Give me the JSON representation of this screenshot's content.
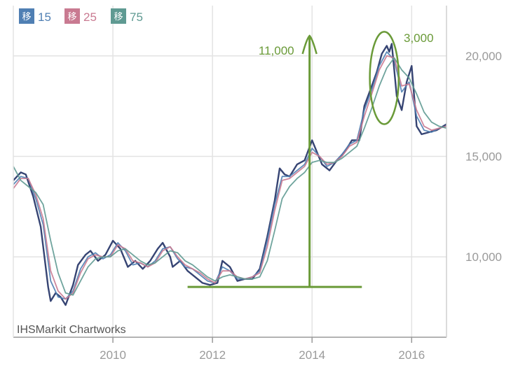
{
  "legend": [
    {
      "box": "移",
      "label": "15",
      "color": "#4f7fb3"
    },
    {
      "box": "移",
      "label": "25",
      "color": "#c97a91"
    },
    {
      "box": "移",
      "label": "75",
      "color": "#5f9a92"
    }
  ],
  "watermark": "IHSMarkit Chartworks",
  "annotations": {
    "rise_label": "11,000",
    "drop_label": "3,000",
    "color": "#6a9a38"
  },
  "chart_data": {
    "type": "line",
    "title": "",
    "xlabel": "",
    "ylabel": "",
    "x_ticks": [
      "2010",
      "2012",
      "2014",
      "2016"
    ],
    "y_ticks": [
      "10,000",
      "15,000",
      "20,000"
    ],
    "y_axis_position": "right",
    "xlim": [
      2008.0,
      2016.7
    ],
    "ylim": [
      6000,
      22500
    ],
    "grid": true,
    "series": [
      {
        "name": "",
        "color": "#2b3a6b",
        "x": [
          2008.0,
          2008.15,
          2008.25,
          2008.4,
          2008.55,
          2008.7,
          2008.75,
          2008.85,
          2008.95,
          2009.05,
          2009.2,
          2009.3,
          2009.45,
          2009.55,
          2009.7,
          2009.85,
          2010.0,
          2010.15,
          2010.3,
          2010.45,
          2010.6,
          2010.75,
          2010.9,
          2011.0,
          2011.15,
          2011.2,
          2011.35,
          2011.5,
          2011.65,
          2011.8,
          2011.95,
          2012.1,
          2012.2,
          2012.35,
          2012.5,
          2012.65,
          2012.8,
          2012.95,
          2013.1,
          2013.25,
          2013.35,
          2013.45,
          2013.55,
          2013.7,
          2013.85,
          2014.0,
          2014.1,
          2014.2,
          2014.35,
          2014.5,
          2014.65,
          2014.8,
          2014.95,
          2015.05,
          2015.2,
          2015.3,
          2015.4,
          2015.5,
          2015.55,
          2015.6,
          2015.7,
          2015.8,
          2015.9,
          2016.0,
          2016.1,
          2016.2,
          2016.35,
          2016.5,
          2016.7
        ],
        "y": [
          13800,
          14200,
          14100,
          13000,
          11500,
          8500,
          7800,
          8200,
          8000,
          7600,
          8600,
          9600,
          10100,
          10300,
          9800,
          10100,
          10800,
          10400,
          9500,
          9800,
          9400,
          9800,
          10400,
          10700,
          10000,
          9500,
          9800,
          9300,
          9000,
          8700,
          8600,
          8700,
          9800,
          9500,
          8800,
          8900,
          8900,
          9400,
          11000,
          12800,
          14400,
          14100,
          14000,
          14600,
          14800,
          15800,
          15200,
          14600,
          14300,
          14800,
          15200,
          15800,
          15800,
          17500,
          18500,
          19200,
          20100,
          20500,
          20200,
          20600,
          18000,
          17300,
          18700,
          19500,
          16500,
          16100,
          16200,
          16300,
          16600
        ]
      },
      {
        "name": "",
        "color": "#4f7fb3",
        "x": [
          2008.0,
          2008.15,
          2008.3,
          2008.45,
          2008.6,
          2008.75,
          2008.9,
          2009.05,
          2009.2,
          2009.35,
          2009.5,
          2009.65,
          2009.8,
          2009.95,
          2010.1,
          2010.25,
          2010.4,
          2010.55,
          2010.7,
          2010.85,
          2011.0,
          2011.15,
          2011.3,
          2011.45,
          2011.6,
          2011.75,
          2011.9,
          2012.05,
          2012.2,
          2012.35,
          2012.5,
          2012.65,
          2012.8,
          2012.95,
          2013.1,
          2013.25,
          2013.4,
          2013.55,
          2013.7,
          2013.85,
          2014.0,
          2014.15,
          2014.3,
          2014.45,
          2014.6,
          2014.75,
          2014.9,
          2015.05,
          2015.2,
          2015.35,
          2015.5,
          2015.65,
          2015.8,
          2015.95,
          2016.1,
          2016.25,
          2016.4,
          2016.55,
          2016.7
        ],
        "y": [
          13600,
          14000,
          13900,
          12900,
          11600,
          8800,
          8000,
          7900,
          8300,
          9400,
          10000,
          10200,
          9900,
          10100,
          10700,
          10300,
          9600,
          9700,
          9500,
          9800,
          10400,
          10500,
          9900,
          9500,
          9400,
          9100,
          8800,
          8700,
          9500,
          9300,
          8900,
          8900,
          9000,
          9300,
          10800,
          12600,
          14000,
          14000,
          14300,
          14600,
          15400,
          15000,
          14500,
          14700,
          15100,
          15600,
          15800,
          17300,
          18300,
          19500,
          20200,
          19800,
          18200,
          18700,
          17000,
          16300,
          16200,
          16400,
          16500
        ]
      },
      {
        "name": "",
        "color": "#c97a91",
        "x": [
          2008.0,
          2008.15,
          2008.3,
          2008.45,
          2008.6,
          2008.75,
          2008.9,
          2009.05,
          2009.2,
          2009.35,
          2009.5,
          2009.65,
          2009.8,
          2009.95,
          2010.1,
          2010.25,
          2010.4,
          2010.55,
          2010.7,
          2010.85,
          2011.0,
          2011.15,
          2011.3,
          2011.45,
          2011.6,
          2011.75,
          2011.9,
          2012.05,
          2012.2,
          2012.35,
          2012.5,
          2012.65,
          2012.8,
          2012.95,
          2013.1,
          2013.25,
          2013.4,
          2013.55,
          2013.7,
          2013.85,
          2014.0,
          2014.15,
          2014.3,
          2014.45,
          2014.6,
          2014.75,
          2014.9,
          2015.05,
          2015.2,
          2015.35,
          2015.5,
          2015.65,
          2015.8,
          2015.95,
          2016.1,
          2016.25,
          2016.4,
          2016.55,
          2016.7
        ],
        "y": [
          13400,
          13900,
          13900,
          13100,
          11900,
          9300,
          8300,
          7900,
          8200,
          9200,
          9900,
          10100,
          10000,
          10000,
          10600,
          10400,
          9800,
          9700,
          9500,
          9700,
          10300,
          10500,
          10000,
          9600,
          9400,
          9200,
          8900,
          8700,
          9300,
          9300,
          9000,
          8900,
          9000,
          9200,
          10500,
          12300,
          13800,
          13900,
          14200,
          14500,
          15200,
          15000,
          14600,
          14700,
          15000,
          15500,
          15700,
          17000,
          18100,
          19300,
          20000,
          19900,
          18500,
          18600,
          17300,
          16500,
          16300,
          16400,
          16500
        ]
      },
      {
        "name": "",
        "color": "#5f9a92",
        "x": [
          2008.0,
          2008.15,
          2008.3,
          2008.45,
          2008.6,
          2008.75,
          2008.9,
          2009.05,
          2009.2,
          2009.35,
          2009.5,
          2009.65,
          2009.8,
          2009.95,
          2010.1,
          2010.25,
          2010.4,
          2010.55,
          2010.7,
          2010.85,
          2011.0,
          2011.15,
          2011.3,
          2011.45,
          2011.6,
          2011.75,
          2011.9,
          2012.05,
          2012.2,
          2012.35,
          2012.5,
          2012.65,
          2012.8,
          2012.95,
          2013.1,
          2013.25,
          2013.4,
          2013.55,
          2013.7,
          2013.85,
          2014.0,
          2014.15,
          2014.3,
          2014.45,
          2014.6,
          2014.75,
          2014.9,
          2015.05,
          2015.2,
          2015.35,
          2015.5,
          2015.65,
          2015.8,
          2015.95,
          2016.1,
          2016.25,
          2016.4,
          2016.55,
          2016.7
        ],
        "y": [
          14500,
          13800,
          13500,
          13200,
          12600,
          10800,
          9200,
          8200,
          8100,
          8800,
          9500,
          9900,
          10000,
          10000,
          10300,
          10400,
          10100,
          9800,
          9600,
          9700,
          10000,
          10300,
          10200,
          9800,
          9600,
          9300,
          9000,
          8800,
          9000,
          9100,
          9000,
          8900,
          8900,
          9000,
          9800,
          11300,
          12900,
          13500,
          13900,
          14200,
          14700,
          14800,
          14700,
          14700,
          14900,
          15200,
          15500,
          16400,
          17400,
          18500,
          19400,
          19900,
          19300,
          18900,
          18100,
          17200,
          16700,
          16500,
          16400
        ]
      }
    ],
    "annotation_data": {
      "baseline_y": 8500,
      "baseline_x": [
        2011.5,
        2015.0
      ],
      "arrow_x": 2013.95,
      "arrow_y": [
        8500,
        21000
      ],
      "ellipse_center": [
        2015.45,
        18900
      ],
      "ellipse_rx_years": 0.29,
      "ellipse_ry_value": 2300
    }
  }
}
